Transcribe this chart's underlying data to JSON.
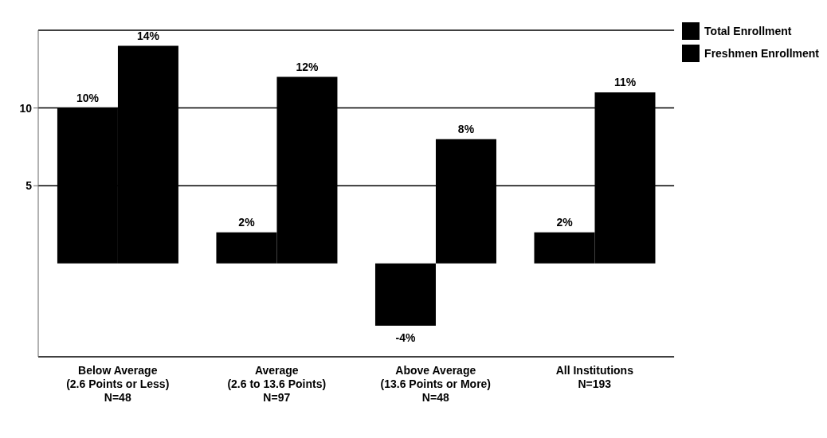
{
  "chart_data": {
    "type": "bar",
    "categories": [
      "Below Average\n(2.6 Points or Less)\nN=48",
      "Average\n(2.6 to 13.6 Points)\nN=97",
      "Above Average\n(13.6 Points or More)\nN=48",
      "All Institutions\nN=193"
    ],
    "series": [
      {
        "name": "Total Enrollment",
        "color": "#000000",
        "values": [
          10,
          2,
          -4,
          2
        ],
        "value_labels": [
          "10%",
          "2%",
          "-4%",
          "2%"
        ]
      },
      {
        "name": "Freshmen Enrollment",
        "color": "#000000",
        "values": [
          14,
          12,
          8,
          11
        ],
        "value_labels": [
          "14%",
          "12%",
          "8%",
          "11%"
        ]
      }
    ],
    "ylim": [
      -6,
      15
    ],
    "yticks": [
      5,
      10
    ],
    "grid": "y",
    "legend": "top right"
  }
}
